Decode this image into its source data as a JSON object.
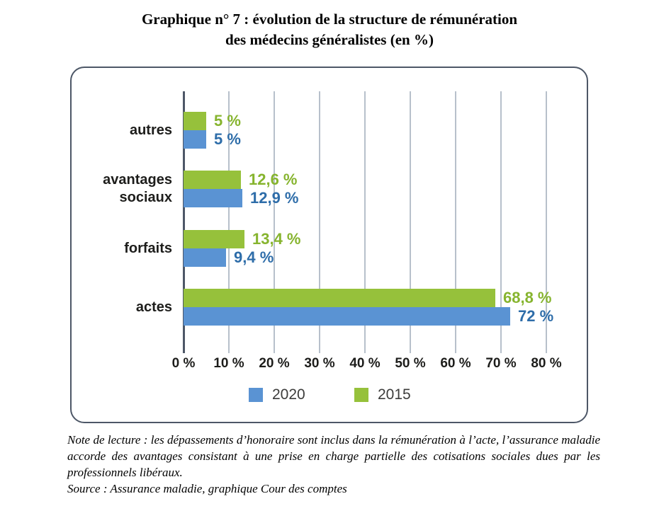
{
  "page": {
    "title_line1": "Graphique n° 7 : évolution de la structure de rémunération",
    "title_line2": "des médecins généralistes (en %)",
    "note": "Note de lecture : les dépassements d’honoraire sont inclus dans la rémunération à l’acte, l’assurance maladie accorde des avantages consistant à une prise en charge partielle des cotisations sociales dues par les professionnels libéraux.",
    "source": "Source : Assurance maladie, graphique Cour des comptes"
  },
  "colors": {
    "card_border": "#4d5767",
    "axis_line": "#4d5767",
    "gridline": "#b7c0cb",
    "text_dark": "#1d1d1b"
  },
  "chart_data": {
    "type": "bar",
    "orientation": "horizontal",
    "title": "Graphique n° 7 : évolution de la structure de rémunération des médecins généralistes (en %)",
    "categories": [
      "autres",
      "avantages sociaux",
      "forfaits",
      "actes"
    ],
    "series": [
      {
        "name": "2015",
        "row": "top",
        "color": "#96c13b",
        "label_color": "#86b42e",
        "values": [
          5,
          12.6,
          13.4,
          68.8
        ],
        "value_labels": [
          "5 %",
          "12,6 %",
          "13,4 %",
          "68,8 %"
        ]
      },
      {
        "name": "2020",
        "row": "bottom",
        "color": "#5a93d3",
        "label_color": "#2e6da9",
        "values": [
          5,
          12.9,
          9.4,
          72
        ],
        "value_labels": [
          "5 %",
          "12,9 %",
          "9,4 %",
          "72 %"
        ]
      }
    ],
    "x_ticks": [
      "0 %",
      "10 %",
      "20 %",
      "30 %",
      "40 %",
      "50 %",
      "60 %",
      "70 %",
      "80 %"
    ],
    "xlim": [
      0,
      80
    ],
    "grid": true,
    "legend_position": "bottom",
    "legend": [
      {
        "label": "2020",
        "color": "#5a93d3"
      },
      {
        "label": "2015",
        "color": "#96c13b"
      }
    ]
  }
}
